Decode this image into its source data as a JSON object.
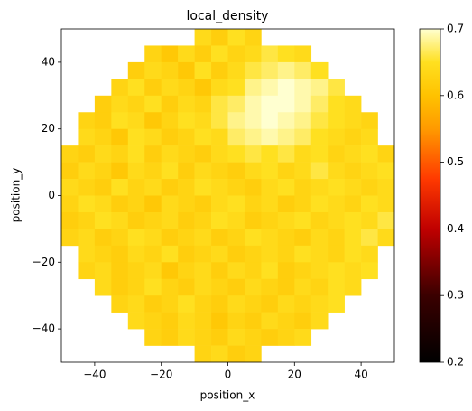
{
  "chart_data": {
    "type": "heatmap",
    "title": "local_density",
    "x_label": "position_x",
    "y_label": "position_y",
    "colormap": "hot",
    "x": [
      -47.5,
      -42.5,
      -37.5,
      -32.5,
      -27.5,
      -22.5,
      -17.5,
      -12.5,
      -7.5,
      -2.5,
      2.5,
      7.5,
      12.5,
      17.5,
      22.5,
      27.5,
      32.5,
      37.5,
      42.5,
      47.5
    ],
    "y": [
      47.5,
      42.5,
      37.5,
      32.5,
      27.5,
      22.5,
      17.5,
      12.5,
      7.5,
      2.5,
      -2.5,
      -7.5,
      -12.5,
      -17.5,
      -22.5,
      -27.5,
      -32.5,
      -37.5,
      -42.5,
      -47.5
    ],
    "values": [
      [
        null,
        null,
        null,
        null,
        null,
        null,
        null,
        null,
        0.64,
        0.62,
        0.65,
        0.63,
        null,
        null,
        null,
        null,
        null,
        null,
        null,
        null
      ],
      [
        null,
        null,
        null,
        null,
        null,
        0.63,
        0.61,
        0.64,
        0.62,
        0.65,
        0.63,
        0.64,
        0.66,
        0.65,
        0.64,
        null,
        null,
        null,
        null,
        null
      ],
      [
        null,
        null,
        null,
        null,
        0.62,
        0.64,
        0.63,
        0.61,
        0.65,
        0.62,
        0.64,
        0.66,
        0.67,
        0.68,
        0.67,
        0.65,
        null,
        null,
        null,
        null
      ],
      [
        null,
        null,
        null,
        0.63,
        0.65,
        0.62,
        0.64,
        0.63,
        0.61,
        0.64,
        0.65,
        0.68,
        0.69,
        0.7,
        0.69,
        0.68,
        0.66,
        null,
        null,
        null
      ],
      [
        null,
        null,
        0.62,
        0.64,
        0.63,
        0.65,
        0.62,
        0.64,
        0.63,
        0.66,
        0.67,
        0.69,
        0.7,
        0.7,
        0.69,
        0.67,
        0.65,
        0.64,
        null,
        null
      ],
      [
        null,
        0.63,
        0.62,
        0.65,
        0.64,
        0.61,
        0.63,
        0.65,
        0.64,
        0.66,
        0.68,
        0.69,
        0.7,
        0.69,
        0.68,
        0.66,
        0.65,
        0.64,
        0.63,
        null
      ],
      [
        null,
        0.64,
        0.63,
        0.61,
        0.65,
        0.64,
        0.62,
        0.63,
        0.65,
        0.64,
        0.67,
        0.68,
        0.69,
        0.68,
        0.67,
        0.65,
        0.64,
        0.63,
        0.64,
        null
      ],
      [
        0.63,
        0.62,
        0.64,
        0.63,
        0.65,
        0.62,
        0.64,
        0.63,
        0.62,
        0.64,
        0.65,
        0.66,
        0.65,
        0.66,
        0.64,
        0.65,
        0.63,
        0.64,
        0.65,
        0.63
      ],
      [
        0.62,
        0.64,
        0.63,
        0.61,
        0.64,
        0.63,
        0.65,
        0.62,
        0.64,
        0.63,
        0.62,
        0.64,
        0.65,
        0.63,
        0.64,
        0.66,
        0.64,
        0.63,
        0.64,
        0.65
      ],
      [
        0.64,
        0.63,
        0.62,
        0.65,
        0.63,
        0.64,
        0.62,
        0.63,
        0.65,
        0.64,
        0.63,
        0.62,
        0.64,
        0.65,
        0.63,
        0.64,
        0.65,
        0.64,
        0.63,
        0.64
      ],
      [
        0.63,
        0.65,
        0.64,
        0.62,
        0.63,
        0.61,
        0.64,
        0.63,
        0.62,
        0.64,
        0.65,
        0.63,
        0.64,
        0.62,
        0.63,
        0.65,
        0.64,
        0.63,
        0.65,
        0.64
      ],
      [
        0.62,
        0.63,
        0.65,
        0.64,
        0.62,
        0.63,
        0.64,
        0.62,
        0.63,
        0.65,
        0.64,
        0.62,
        0.63,
        0.64,
        0.65,
        0.63,
        0.64,
        0.65,
        0.64,
        0.66
      ],
      [
        0.63,
        0.64,
        0.62,
        0.63,
        0.65,
        0.64,
        0.62,
        0.63,
        0.64,
        0.62,
        0.63,
        0.65,
        0.64,
        0.63,
        0.62,
        0.64,
        0.63,
        0.65,
        0.66,
        0.64
      ],
      [
        null,
        0.64,
        0.63,
        0.62,
        0.64,
        0.63,
        0.65,
        0.62,
        0.63,
        0.64,
        0.62,
        0.63,
        0.64,
        0.63,
        0.65,
        0.64,
        0.63,
        0.65,
        0.64,
        null
      ],
      [
        null,
        0.63,
        0.64,
        0.62,
        0.63,
        0.64,
        0.61,
        0.63,
        0.64,
        0.62,
        0.64,
        0.63,
        0.65,
        0.62,
        0.63,
        0.64,
        0.65,
        0.64,
        0.65,
        null
      ],
      [
        null,
        null,
        0.64,
        0.62,
        0.63,
        0.65,
        0.63,
        0.62,
        0.64,
        0.63,
        0.62,
        0.64,
        0.63,
        0.62,
        0.64,
        0.63,
        0.65,
        0.64,
        null,
        null
      ],
      [
        null,
        null,
        null,
        0.63,
        0.64,
        0.62,
        0.63,
        0.65,
        0.63,
        0.62,
        0.64,
        0.63,
        0.62,
        0.64,
        0.63,
        0.64,
        0.65,
        null,
        null,
        null
      ],
      [
        null,
        null,
        null,
        null,
        0.64,
        0.63,
        0.62,
        0.64,
        0.63,
        0.61,
        0.63,
        0.62,
        0.64,
        0.63,
        0.62,
        0.64,
        null,
        null,
        null,
        null
      ],
      [
        null,
        null,
        null,
        null,
        null,
        0.63,
        0.62,
        0.64,
        0.63,
        0.62,
        0.64,
        0.63,
        0.62,
        0.63,
        0.64,
        null,
        null,
        null,
        null,
        null
      ],
      [
        null,
        null,
        null,
        null,
        null,
        null,
        null,
        null,
        0.63,
        0.64,
        0.62,
        0.63,
        null,
        null,
        null,
        null,
        null,
        null,
        null,
        null
      ]
    ],
    "xlim": [
      -50,
      50
    ],
    "ylim": [
      -50,
      50
    ],
    "xticks": [
      {
        "value": -40,
        "label": "−40"
      },
      {
        "value": -20,
        "label": "−20"
      },
      0,
      20,
      40
    ],
    "yticks": [
      {
        "value": -40,
        "label": "−40"
      },
      {
        "value": -20,
        "label": "−20"
      },
      0,
      20,
      40
    ],
    "clim": [
      0.2,
      0.7
    ],
    "cticks": [
      0.2,
      0.3,
      0.4,
      0.5,
      0.6,
      0.7
    ]
  }
}
